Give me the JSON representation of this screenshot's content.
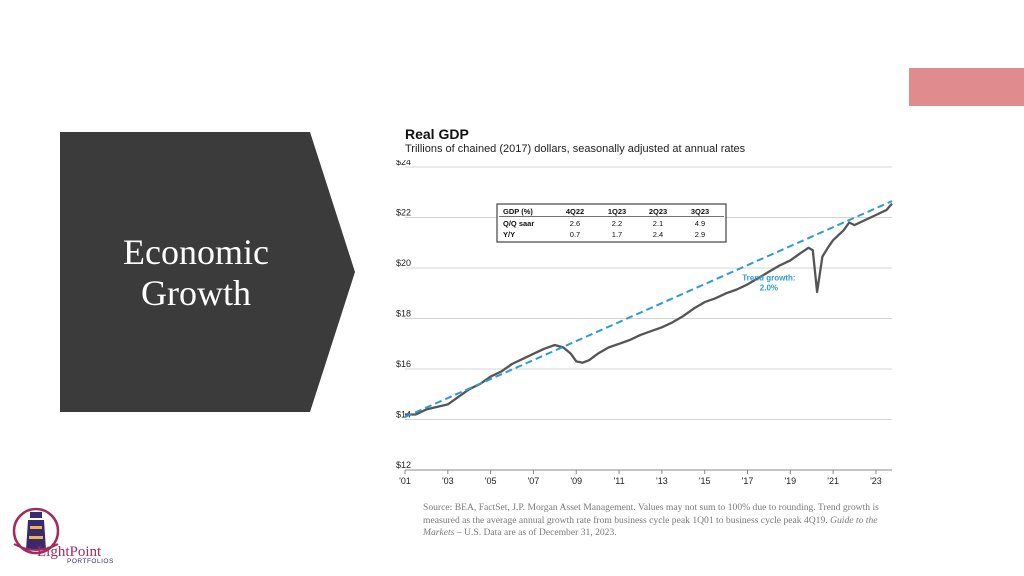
{
  "colors": {
    "accent": "#e08c8f",
    "chevron": "#3b3b3b",
    "gdp_line": "#555555",
    "trend_line": "#2e9bd6",
    "logo_primary": "#a32a5c",
    "logo_secondary": "#3a2a6b"
  },
  "slide": {
    "title_line1": "Economic",
    "title_line2": "Growth"
  },
  "source": {
    "text_before": "Source: BEA, FactSet, J.P. Morgan Asset Management. Values may not sum to 100% due to rounding. Trend growth is measured as the average annual growth rate from business cycle peak 1Q01 to business cycle peak 4Q19. ",
    "italic": "Guide to the Markets",
    "text_after": " – U.S. Data are as of December 31, 2023."
  },
  "logo": {
    "name": "LightPoint",
    "sub": "PORTFOLIOS",
    "icon": "lighthouse-icon"
  },
  "chart_data": {
    "type": "line",
    "title": "Real GDP",
    "subtitle": "Trillions of chained (2017) dollars, seasonally adjusted at annual rates",
    "xlim": [
      2001,
      2023.75
    ],
    "ylim": [
      12,
      24
    ],
    "x_ticks": [
      {
        "label": "'01",
        "x": 2001
      },
      {
        "label": "'03",
        "x": 2003
      },
      {
        "label": "'05",
        "x": 2005
      },
      {
        "label": "'07",
        "x": 2007
      },
      {
        "label": "'09",
        "x": 2009
      },
      {
        "label": "'11",
        "x": 2011
      },
      {
        "label": "'13",
        "x": 2013
      },
      {
        "label": "'15",
        "x": 2015
      },
      {
        "label": "'17",
        "x": 2017
      },
      {
        "label": "'19",
        "x": 2019
      },
      {
        "label": "'21",
        "x": 2021
      },
      {
        "label": "'23",
        "x": 2023
      }
    ],
    "y_ticks": [
      {
        "label": "$12",
        "y": 12
      },
      {
        "label": "$14",
        "y": 14
      },
      {
        "label": "$16",
        "y": 16
      },
      {
        "label": "$18",
        "y": 18
      },
      {
        "label": "$20",
        "y": 20
      },
      {
        "label": "$22",
        "y": 22
      },
      {
        "label": "$24",
        "y": 24
      }
    ],
    "grid": true,
    "series": [
      {
        "style": "solid",
        "x": [
          2001.0,
          2001.5,
          2002.0,
          2002.5,
          2003.0,
          2003.5,
          2004.0,
          2004.5,
          2005.0,
          2005.5,
          2006.0,
          2006.5,
          2007.0,
          2007.5,
          2008.0,
          2008.4,
          2008.75,
          2009.0,
          2009.3,
          2009.6,
          2010.0,
          2010.5,
          2011.0,
          2011.5,
          2012.0,
          2012.5,
          2013.0,
          2013.5,
          2014.0,
          2014.5,
          2015.0,
          2015.5,
          2016.0,
          2016.5,
          2017.0,
          2017.5,
          2018.0,
          2018.5,
          2019.0,
          2019.5,
          2019.85,
          2020.05,
          2020.25,
          2020.5,
          2020.75,
          2021.0,
          2021.5,
          2021.75,
          2022.0,
          2022.5,
          2023.0,
          2023.5,
          2023.75
        ],
        "y": [
          14.2,
          14.2,
          14.4,
          14.5,
          14.6,
          14.9,
          15.2,
          15.4,
          15.7,
          15.9,
          16.2,
          16.4,
          16.6,
          16.8,
          16.95,
          16.85,
          16.6,
          16.3,
          16.25,
          16.35,
          16.6,
          16.85,
          17.0,
          17.15,
          17.35,
          17.5,
          17.65,
          17.85,
          18.1,
          18.4,
          18.65,
          18.8,
          19.0,
          19.15,
          19.35,
          19.6,
          19.85,
          20.1,
          20.3,
          20.6,
          20.8,
          20.7,
          19.05,
          20.45,
          20.8,
          21.1,
          21.5,
          21.8,
          21.7,
          21.9,
          22.1,
          22.3,
          22.55
        ]
      },
      {
        "name": "Trend growth: 2.0%",
        "style": "dashed",
        "x": [
          2001.0,
          2023.75
        ],
        "y": [
          14.1,
          22.65
        ]
      }
    ],
    "annotations": [
      {
        "text": "Trend growth:",
        "x": 2018.0,
        "y": 19.5
      },
      {
        "text": "2.0%",
        "x": 2018.0,
        "y": 19.1
      }
    ],
    "table": {
      "headers": [
        "GDP (%)",
        "4Q22",
        "1Q23",
        "2Q23",
        "3Q23"
      ],
      "rows": [
        [
          "Q/Q saar",
          "2.6",
          "2.2",
          "2.1",
          "4.9"
        ],
        [
          "Y/Y",
          "0.7",
          "1.7",
          "2.4",
          "2.9"
        ]
      ]
    }
  }
}
